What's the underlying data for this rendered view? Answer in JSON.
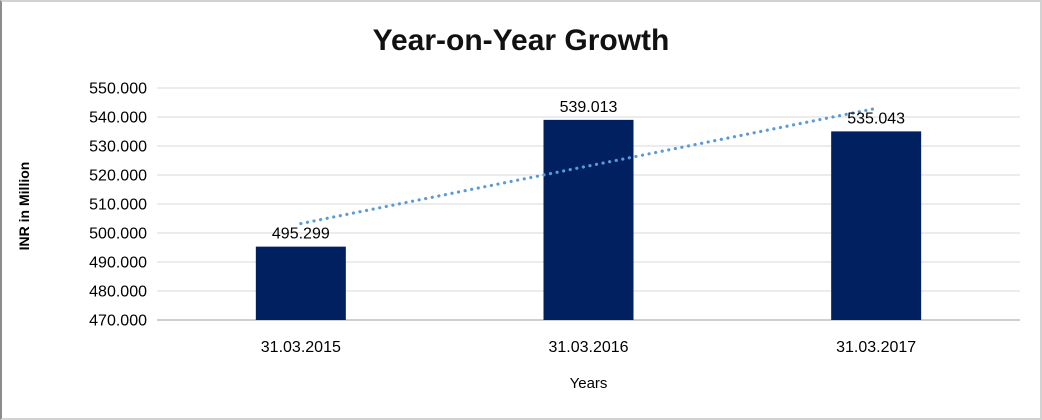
{
  "chart_data": {
    "type": "bar",
    "title": "Year-on-Year Growth",
    "xlabel": "Years",
    "ylabel": "INR in Million",
    "categories": [
      "31.03.2015",
      "31.03.2016",
      "31.03.2017"
    ],
    "values": [
      495.299,
      539.013,
      535.043
    ],
    "data_labels": [
      "495.299",
      "539.013",
      "535.043"
    ],
    "ylim": [
      470,
      550
    ],
    "ytick_step": 10,
    "yticks": [
      {
        "value": 550,
        "label": "550.000"
      },
      {
        "value": 540,
        "label": "540.000"
      },
      {
        "value": 530,
        "label": "530.000"
      },
      {
        "value": 520,
        "label": "520.000"
      },
      {
        "value": 510,
        "label": "510.000"
      },
      {
        "value": 500,
        "label": "500.000"
      },
      {
        "value": 490,
        "label": "490.000"
      },
      {
        "value": 480,
        "label": "480.000"
      },
      {
        "value": 470,
        "label": "470.000"
      }
    ],
    "grid": true,
    "legend": "none",
    "trendline": {
      "type": "linear",
      "style": "dotted"
    },
    "colors": {
      "bar": "#002060",
      "trendline": "#5B9BD5",
      "gridline": "#D9D9D9",
      "axis_line": "#BFBFBF",
      "text": "#000000",
      "title": "#111111"
    }
  }
}
